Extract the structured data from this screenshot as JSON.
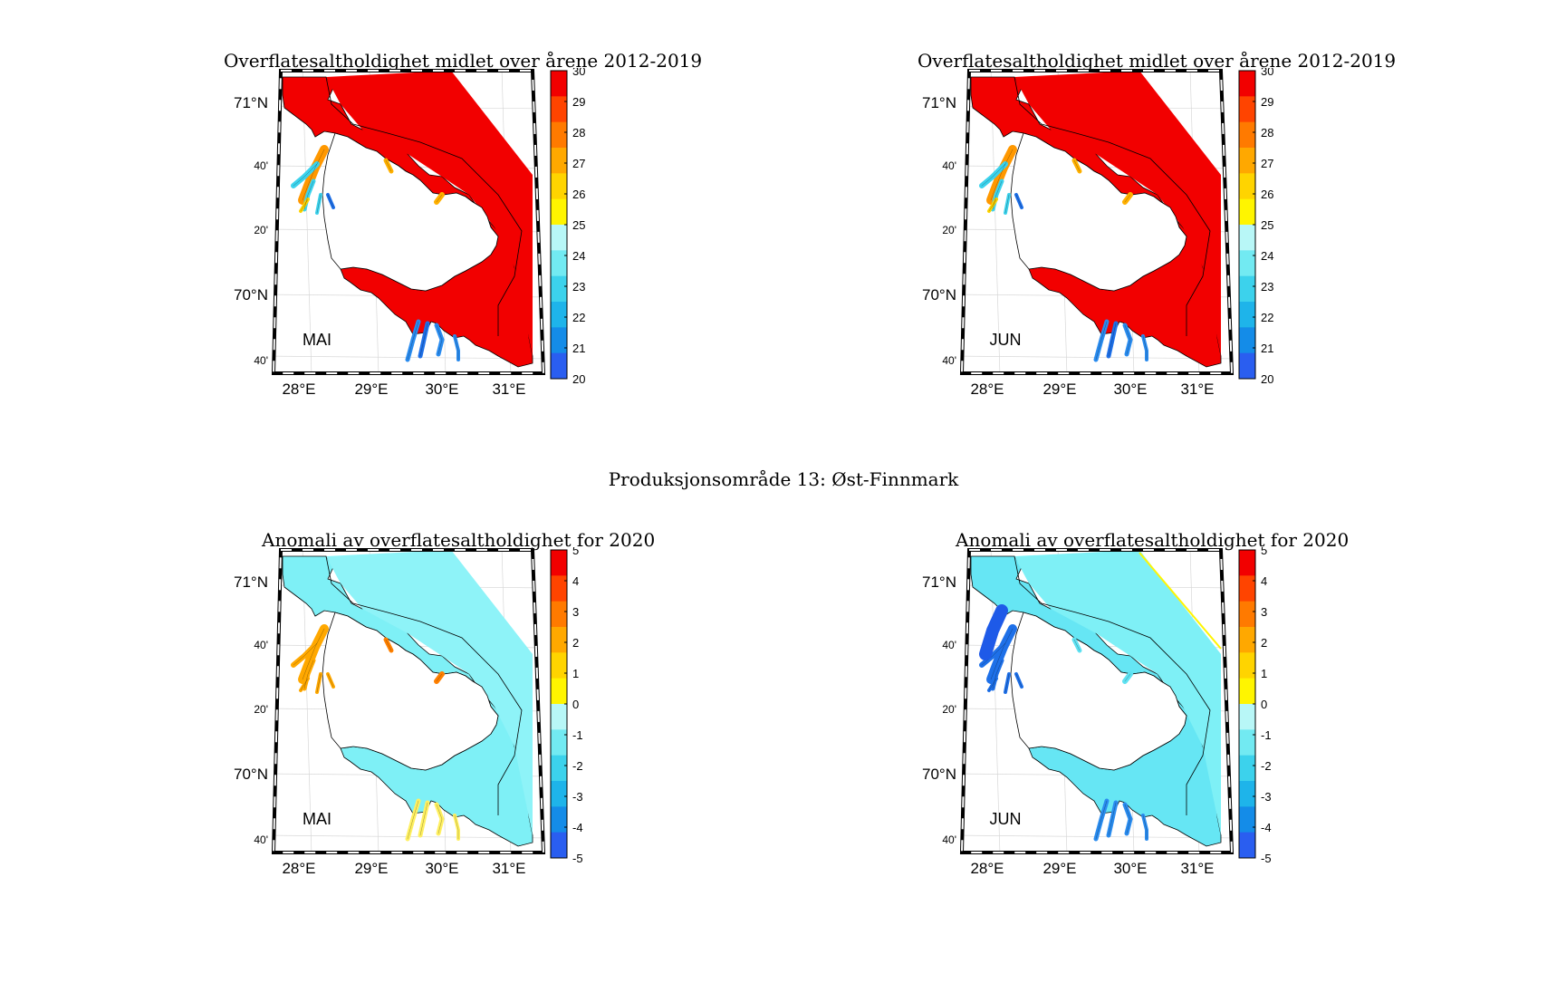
{
  "suptitle": "Produksjonsområde 13: Øst-Finnmark",
  "colors": {
    "red": "#f20000",
    "landfill": "#ffffff",
    "anom_bg": "#7ef0f6",
    "anom_bg2": "#8ef3f8",
    "border": "#000000"
  },
  "panels": [
    {
      "id": "mean-mai",
      "title": "Overflatesaltholdighet midlet over årene 2012-2019",
      "month": "MAI",
      "kind": "mean",
      "lat_labels": [
        "71°N",
        "40'",
        "20'",
        "70°N",
        "40'"
      ],
      "lon_labels": [
        "28°E",
        "29°E",
        "30°E",
        "31°E"
      ],
      "colorbar_ticks": [
        "30",
        "29",
        "28",
        "27",
        "26",
        "25",
        "24",
        "23",
        "22",
        "21",
        "20"
      ],
      "colorbar_colors": [
        "#f20000",
        "#ff4400",
        "#ff7a00",
        "#ffa800",
        "#ffd400",
        "#fff500",
        "#b8f7f7",
        "#72eaf2",
        "#3cd2ec",
        "#1eb4ea",
        "#148ce8",
        "#2a5ef0"
      ]
    },
    {
      "id": "mean-jun",
      "title": "Overflatesaltholdighet midlet over årene 2012-2019",
      "month": "JUN",
      "kind": "mean",
      "lat_labels": [
        "71°N",
        "40'",
        "20'",
        "70°N",
        "40'"
      ],
      "lon_labels": [
        "28°E",
        "29°E",
        "30°E",
        "31°E"
      ],
      "colorbar_ticks": [
        "30",
        "29",
        "28",
        "27",
        "26",
        "25",
        "24",
        "23",
        "22",
        "21",
        "20"
      ],
      "colorbar_colors": [
        "#f20000",
        "#ff4400",
        "#ff7a00",
        "#ffa800",
        "#ffd400",
        "#fff500",
        "#b8f7f7",
        "#72eaf2",
        "#3cd2ec",
        "#1eb4ea",
        "#148ce8",
        "#2a5ef0"
      ]
    },
    {
      "id": "anom-mai",
      "title": "Anomali av overflatesaltholdighet for 2020",
      "month": "MAI",
      "kind": "anom-mai",
      "lat_labels": [
        "71°N",
        "40'",
        "20'",
        "70°N",
        "40'"
      ],
      "lon_labels": [
        "28°E",
        "29°E",
        "30°E",
        "31°E"
      ],
      "colorbar_ticks": [
        "5",
        "4",
        "3",
        "2",
        "1",
        "0",
        "-1",
        "-2",
        "-3",
        "-4",
        "-5"
      ],
      "colorbar_colors": [
        "#f20000",
        "#ff4400",
        "#ff7a00",
        "#ffa800",
        "#ffd400",
        "#fff500",
        "#b8f7f7",
        "#72eaf2",
        "#3cd2ec",
        "#1eb4ea",
        "#148ce8",
        "#2a5ef0"
      ]
    },
    {
      "id": "anom-jun",
      "title": "Anomali av overflatesaltholdighet for 2020",
      "month": "JUN",
      "kind": "anom-jun",
      "lat_labels": [
        "71°N",
        "40'",
        "20'",
        "70°N",
        "40'"
      ],
      "lon_labels": [
        "28°E",
        "29°E",
        "30°E",
        "31°E"
      ],
      "colorbar_ticks": [
        "5",
        "4",
        "3",
        "2",
        "1",
        "0",
        "-1",
        "-2",
        "-3",
        "-4",
        "-5"
      ],
      "colorbar_colors": [
        "#f20000",
        "#ff4400",
        "#ff7a00",
        "#ffa800",
        "#ffd400",
        "#fff500",
        "#b8f7f7",
        "#72eaf2",
        "#3cd2ec",
        "#1eb4ea",
        "#148ce8",
        "#2a5ef0"
      ]
    }
  ]
}
